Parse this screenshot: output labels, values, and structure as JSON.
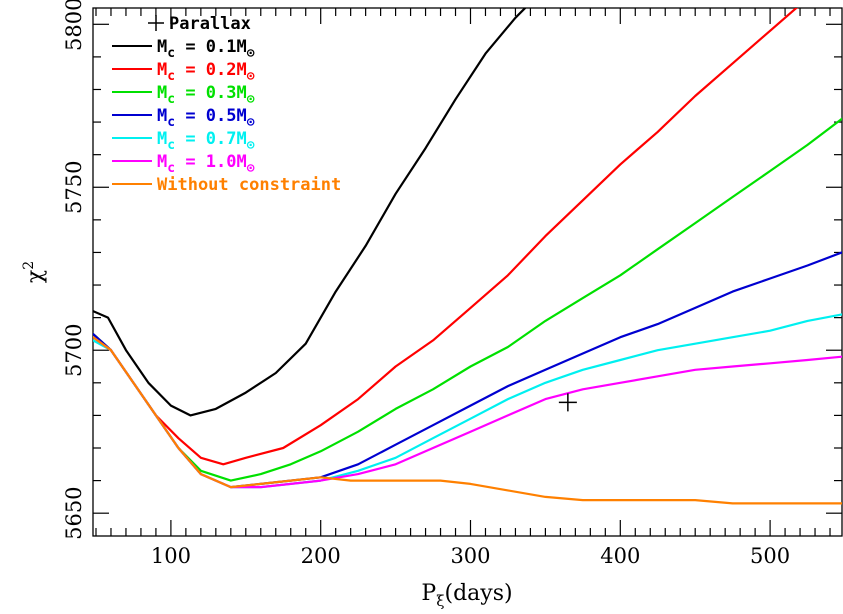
{
  "chart_data": {
    "type": "line",
    "xlabel": "P",
    "xlabel_sub": "ξ",
    "xlabel_unit": "(days)",
    "ylabel": "χ",
    "ylabel_sup": "2",
    "xlim": [
      48,
      548
    ],
    "ylim": [
      5643,
      5805
    ],
    "x_ticks": [
      100,
      200,
      300,
      400,
      500
    ],
    "y_ticks": [
      5650,
      5700,
      5750,
      5800
    ],
    "grid": false,
    "legend_position": "top-left",
    "series": [
      {
        "name": "Mc = 0.1M⊙",
        "label_main": "M",
        "label_sub": "c",
        "label_rest": " = 0.1M",
        "label_sun": "⊙",
        "color": "#000000",
        "x": [
          48,
          58,
          70,
          85,
          100,
          113,
          130,
          150,
          170,
          190,
          210,
          230,
          250,
          270,
          290,
          310,
          330,
          343
        ],
        "y": [
          5712,
          5710,
          5700,
          5690,
          5683,
          5680,
          5682,
          5687,
          5693,
          5702,
          5718,
          5732,
          5748,
          5762,
          5777,
          5791,
          5802,
          5808
        ]
      },
      {
        "name": "Mc = 0.2M⊙",
        "label_main": "M",
        "label_sub": "c",
        "label_rest": " = 0.2M",
        "label_sun": "⊙",
        "color": "#ff0000",
        "x": [
          48,
          60,
          75,
          90,
          105,
          120,
          135,
          150,
          175,
          200,
          225,
          250,
          275,
          300,
          325,
          350,
          375,
          400,
          425,
          450,
          475,
          500,
          520
        ],
        "y": [
          5705,
          5700,
          5690,
          5680,
          5673,
          5667,
          5665,
          5667,
          5670,
          5677,
          5685,
          5695,
          5703,
          5713,
          5723,
          5735,
          5746,
          5757,
          5767,
          5778,
          5788,
          5798,
          5806
        ]
      },
      {
        "name": "Mc = 0.3M⊙",
        "label_main": "M",
        "label_sub": "c",
        "label_rest": " = 0.3M",
        "label_sun": "⊙",
        "color": "#00e000",
        "x": [
          48,
          60,
          75,
          90,
          105,
          120,
          140,
          160,
          180,
          200,
          225,
          250,
          275,
          300,
          325,
          350,
          375,
          400,
          425,
          450,
          475,
          500,
          525,
          548
        ],
        "y": [
          5705,
          5700,
          5690,
          5680,
          5670,
          5663,
          5660,
          5662,
          5665,
          5669,
          5675,
          5682,
          5688,
          5695,
          5701,
          5709,
          5716,
          5723,
          5731,
          5739,
          5747,
          5755,
          5763,
          5771
        ]
      },
      {
        "name": "Mc = 0.5M⊙",
        "label_main": "M",
        "label_sub": "c",
        "label_rest": " = 0.5M",
        "label_sun": "⊙",
        "color": "#0000d0",
        "x": [
          48,
          60,
          75,
          90,
          105,
          120,
          140,
          160,
          180,
          200,
          225,
          250,
          275,
          300,
          325,
          350,
          375,
          400,
          425,
          450,
          475,
          500,
          525,
          548
        ],
        "y": [
          5705,
          5700,
          5690,
          5680,
          5670,
          5662,
          5658,
          5659,
          5660,
          5661,
          5665,
          5671,
          5677,
          5683,
          5689,
          5694,
          5699,
          5704,
          5708,
          5713,
          5718,
          5722,
          5726,
          5730
        ]
      },
      {
        "name": "Mc = 0.7M⊙",
        "label_main": "M",
        "label_sub": "c",
        "label_rest": " = 0.7M",
        "label_sun": "⊙",
        "color": "#00f0f0",
        "x": [
          48,
          60,
          75,
          90,
          105,
          120,
          140,
          160,
          180,
          200,
          225,
          250,
          275,
          300,
          325,
          350,
          375,
          400,
          425,
          450,
          475,
          500,
          525,
          548
        ],
        "y": [
          5703,
          5700,
          5690,
          5680,
          5670,
          5662,
          5658,
          5658,
          5659,
          5660,
          5663,
          5667,
          5673,
          5679,
          5685,
          5690,
          5694,
          5697,
          5700,
          5702,
          5704,
          5706,
          5709,
          5711
        ]
      },
      {
        "name": "Mc = 1.0M⊙",
        "label_main": "M",
        "label_sub": "c",
        "label_rest": " = 1.0M",
        "label_sun": "⊙",
        "color": "#ff00ff",
        "x": [
          48,
          60,
          75,
          90,
          105,
          120,
          140,
          160,
          180,
          200,
          225,
          250,
          275,
          300,
          325,
          350,
          375,
          400,
          425,
          450,
          475,
          500,
          525,
          548
        ],
        "y": [
          5704,
          5700,
          5690,
          5680,
          5670,
          5662,
          5658,
          5658,
          5659,
          5660,
          5662,
          5665,
          5670,
          5675,
          5680,
          5685,
          5688,
          5690,
          5692,
          5694,
          5695,
          5696,
          5697,
          5698
        ]
      },
      {
        "name": "Without constraint",
        "label_main": "Without constraint",
        "label_sub": "",
        "label_rest": "",
        "label_sun": "",
        "color": "#ff8000",
        "x": [
          48,
          60,
          75,
          90,
          105,
          120,
          140,
          160,
          180,
          200,
          220,
          240,
          260,
          280,
          300,
          325,
          350,
          375,
          400,
          425,
          450,
          475,
          500,
          525,
          548
        ],
        "y": [
          5704,
          5700,
          5690,
          5680,
          5670,
          5662,
          5658,
          5659,
          5660,
          5661,
          5660,
          5660,
          5660,
          5660,
          5659,
          5657,
          5655,
          5654,
          5654,
          5654,
          5654,
          5653,
          5653,
          5653,
          5653
        ]
      }
    ],
    "marker": {
      "name": "Parallax",
      "symbol": "+",
      "x": 365,
      "y": 5684,
      "color": "#000000"
    }
  }
}
